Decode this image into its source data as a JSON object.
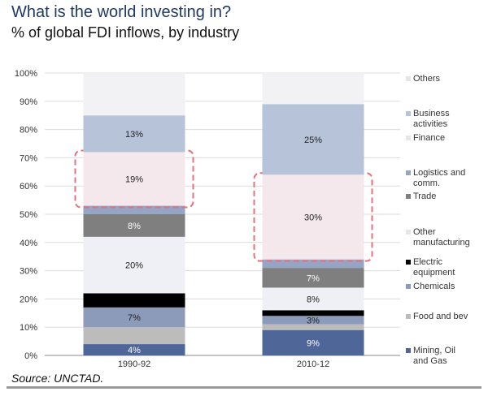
{
  "chart_data": {
    "type": "bar",
    "stacked": true,
    "title": "What is the world investing in?",
    "subtitle": "% of global FDI inflows, by industry",
    "source": "Source: UNCTAD.",
    "categories": [
      "1990-92",
      "2010-12"
    ],
    "ylim": [
      0,
      100
    ],
    "yticks": [
      "0%",
      "10%",
      "20%",
      "30%",
      "40%",
      "50%",
      "60%",
      "70%",
      "80%",
      "90%",
      "100%"
    ],
    "grid": true,
    "legend_position": "right",
    "series": [
      {
        "name": "Mining, Oil and Gas",
        "values": [
          4,
          9
        ],
        "color": "#4f6699",
        "labels": [
          "4%",
          "9%"
        ],
        "label_color": "#ffffff"
      },
      {
        "name": "Food and bev",
        "values": [
          6,
          2
        ],
        "color": "#bcbcbc",
        "labels": [
          null,
          null
        ]
      },
      {
        "name": "Chemicals",
        "values": [
          7,
          3
        ],
        "color": "#8c9bb9",
        "labels": [
          "7%",
          "3%"
        ],
        "label_color": "#222222"
      },
      {
        "name": "Electric equipment",
        "values": [
          5,
          2
        ],
        "color": "#000000",
        "labels": [
          null,
          null
        ]
      },
      {
        "name": "Other manufacturing",
        "values": [
          20,
          8
        ],
        "color": "#eff0f5",
        "labels": [
          "20%",
          "8%"
        ],
        "label_color": "#222222"
      },
      {
        "name": "Trade",
        "values": [
          8,
          7
        ],
        "color": "#7f7f7f",
        "labels": [
          "8%",
          "7%"
        ],
        "label_color": "#ffffff"
      },
      {
        "name": "Logistics and comm.",
        "values": [
          3,
          3
        ],
        "color": "#95a5c5",
        "labels": [
          null,
          null
        ]
      },
      {
        "name": "Finance",
        "values": [
          19,
          30
        ],
        "color": "#f4e8ec",
        "labels": [
          "19%",
          "30%"
        ],
        "label_color": "#222222",
        "highlighted": true
      },
      {
        "name": "Business activities",
        "values": [
          13,
          25
        ],
        "color": "#b6c3d9",
        "labels": [
          "13%",
          "25%"
        ],
        "label_color": "#222222"
      },
      {
        "name": "Others",
        "values": [
          15,
          11
        ],
        "color": "#f2f2f5",
        "labels": [
          null,
          null
        ]
      }
    ],
    "highlight_color": "#e8707e"
  }
}
